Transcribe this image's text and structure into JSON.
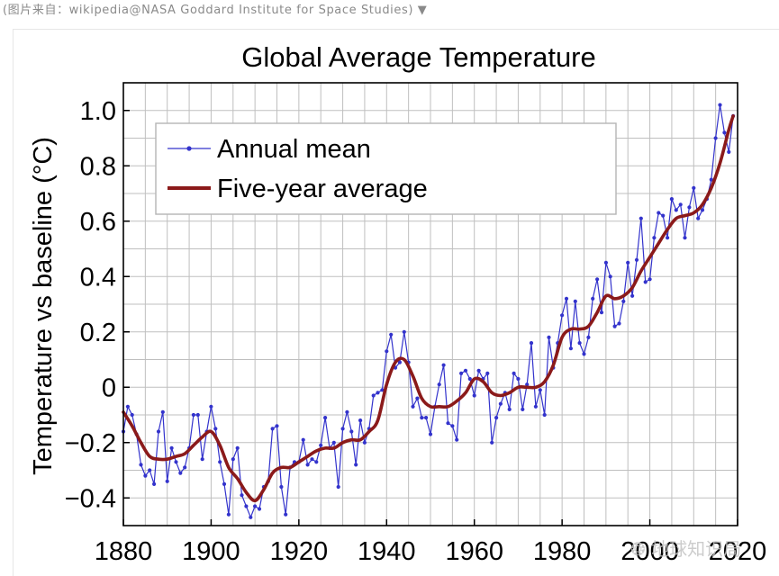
{
  "caption": {
    "text": "(图片来自：wikipedia@NASA Goddard Institute for Space Studies)",
    "toggle_icon": "triangle-down-icon",
    "toggle_glyph": "▼"
  },
  "watermark": {
    "text": "地球知识局",
    "icon": "wechat-icon"
  },
  "colors": {
    "annual": "#3333cc",
    "five_year": "#8b1a1a",
    "grid": "#bfbfbf",
    "axis": "#000000"
  },
  "chart_data": {
    "type": "line",
    "title": "Global Average Temperature",
    "xlabel": "",
    "ylabel": "Temperature vs baseline (°C)",
    "xlim": [
      1880,
      2020
    ],
    "ylim": [
      -0.5,
      1.1
    ],
    "xticks": [
      1880,
      1900,
      1920,
      1940,
      1960,
      1980,
      2000,
      2020
    ],
    "xtick_labels": [
      "1880",
      "1900",
      "1920",
      "1940",
      "1960",
      "1980",
      "2000",
      "2020"
    ],
    "yticks": [
      -0.4,
      -0.2,
      0,
      0.2,
      0.4,
      0.6,
      0.8,
      1.0
    ],
    "ytick_labels": [
      "−0.4",
      "−0.2",
      "0",
      "0.2",
      "0.4",
      "0.6",
      "0.8",
      "1.0"
    ],
    "grid": true,
    "grid_step_x": 5,
    "grid_step_y": 0.1,
    "legend_position": "top-left",
    "series": [
      {
        "name": "Annual mean",
        "style": "line-with-markers",
        "x": [
          1880,
          1881,
          1882,
          1883,
          1884,
          1885,
          1886,
          1887,
          1888,
          1889,
          1890,
          1891,
          1892,
          1893,
          1894,
          1895,
          1896,
          1897,
          1898,
          1899,
          1900,
          1901,
          1902,
          1903,
          1904,
          1905,
          1906,
          1907,
          1908,
          1909,
          1910,
          1911,
          1912,
          1913,
          1914,
          1915,
          1916,
          1917,
          1918,
          1919,
          1920,
          1921,
          1922,
          1923,
          1924,
          1925,
          1926,
          1927,
          1928,
          1929,
          1930,
          1931,
          1932,
          1933,
          1934,
          1935,
          1936,
          1937,
          1938,
          1939,
          1940,
          1941,
          1942,
          1943,
          1944,
          1945,
          1946,
          1947,
          1948,
          1949,
          1950,
          1951,
          1952,
          1953,
          1954,
          1955,
          1956,
          1957,
          1958,
          1959,
          1960,
          1961,
          1962,
          1963,
          1964,
          1965,
          1966,
          1967,
          1968,
          1969,
          1970,
          1971,
          1972,
          1973,
          1974,
          1975,
          1976,
          1977,
          1978,
          1979,
          1980,
          1981,
          1982,
          1983,
          1984,
          1985,
          1986,
          1987,
          1988,
          1989,
          1990,
          1991,
          1992,
          1993,
          1994,
          1995,
          1996,
          1997,
          1998,
          1999,
          2000,
          2001,
          2002,
          2003,
          2004,
          2005,
          2006,
          2007,
          2008,
          2009,
          2010,
          2011,
          2012,
          2013,
          2014,
          2015,
          2016,
          2017,
          2018,
          2019
        ],
        "values": [
          -0.16,
          -0.07,
          -0.1,
          -0.17,
          -0.28,
          -0.32,
          -0.3,
          -0.35,
          -0.16,
          -0.09,
          -0.34,
          -0.22,
          -0.27,
          -0.31,
          -0.29,
          -0.22,
          -0.1,
          -0.1,
          -0.26,
          -0.16,
          -0.07,
          -0.15,
          -0.27,
          -0.35,
          -0.46,
          -0.26,
          -0.22,
          -0.39,
          -0.43,
          -0.47,
          -0.43,
          -0.44,
          -0.36,
          -0.34,
          -0.15,
          -0.14,
          -0.36,
          -0.46,
          -0.29,
          -0.27,
          -0.27,
          -0.19,
          -0.28,
          -0.26,
          -0.27,
          -0.21,
          -0.11,
          -0.22,
          -0.2,
          -0.36,
          -0.15,
          -0.09,
          -0.16,
          -0.28,
          -0.12,
          -0.2,
          -0.15,
          -0.03,
          -0.02,
          -0.01,
          0.13,
          0.19,
          0.07,
          0.09,
          0.2,
          0.09,
          -0.07,
          -0.04,
          -0.11,
          -0.11,
          -0.17,
          -0.07,
          0.01,
          0.08,
          -0.13,
          -0.14,
          -0.19,
          0.05,
          0.06,
          0.03,
          -0.03,
          0.06,
          0.03,
          0.05,
          -0.2,
          -0.11,
          -0.06,
          -0.02,
          -0.08,
          0.05,
          0.03,
          -0.08,
          0.01,
          0.16,
          -0.07,
          -0.01,
          -0.1,
          0.18,
          0.07,
          0.16,
          0.26,
          0.32,
          0.14,
          0.31,
          0.16,
          0.12,
          0.18,
          0.32,
          0.39,
          0.27,
          0.45,
          0.4,
          0.22,
          0.23,
          0.31,
          0.45,
          0.33,
          0.46,
          0.61,
          0.38,
          0.39,
          0.54,
          0.63,
          0.62,
          0.54,
          0.68,
          0.64,
          0.66,
          0.54,
          0.65,
          0.72,
          0.61,
          0.64,
          0.68,
          0.75,
          0.9,
          1.02,
          0.92,
          0.85,
          0.98
        ]
      },
      {
        "name": "Five-year average",
        "style": "smooth-line",
        "x": [
          1880,
          1882,
          1884,
          1886,
          1888,
          1890,
          1892,
          1894,
          1896,
          1898,
          1900,
          1902,
          1904,
          1906,
          1908,
          1910,
          1912,
          1914,
          1916,
          1918,
          1920,
          1922,
          1924,
          1926,
          1928,
          1930,
          1932,
          1934,
          1936,
          1938,
          1940,
          1942,
          1944,
          1946,
          1948,
          1950,
          1952,
          1954,
          1956,
          1958,
          1960,
          1962,
          1964,
          1966,
          1968,
          1970,
          1972,
          1974,
          1976,
          1978,
          1980,
          1982,
          1984,
          1986,
          1988,
          1990,
          1992,
          1994,
          1996,
          1998,
          2000,
          2002,
          2004,
          2006,
          2008,
          2010,
          2012,
          2014,
          2016,
          2018,
          2019
        ],
        "values": [
          -0.09,
          -0.14,
          -0.2,
          -0.25,
          -0.26,
          -0.26,
          -0.25,
          -0.24,
          -0.21,
          -0.18,
          -0.16,
          -0.21,
          -0.29,
          -0.33,
          -0.38,
          -0.41,
          -0.37,
          -0.31,
          -0.29,
          -0.29,
          -0.27,
          -0.25,
          -0.23,
          -0.22,
          -0.22,
          -0.2,
          -0.19,
          -0.19,
          -0.16,
          -0.12,
          0.01,
          0.09,
          0.1,
          0.04,
          -0.04,
          -0.07,
          -0.07,
          -0.07,
          -0.05,
          -0.02,
          0.03,
          0.02,
          -0.02,
          -0.03,
          -0.02,
          0.0,
          0.0,
          0.0,
          0.02,
          0.08,
          0.18,
          0.21,
          0.21,
          0.22,
          0.27,
          0.33,
          0.32,
          0.33,
          0.36,
          0.42,
          0.47,
          0.52,
          0.57,
          0.61,
          0.62,
          0.63,
          0.66,
          0.72,
          0.81,
          0.93,
          0.98
        ]
      }
    ]
  }
}
